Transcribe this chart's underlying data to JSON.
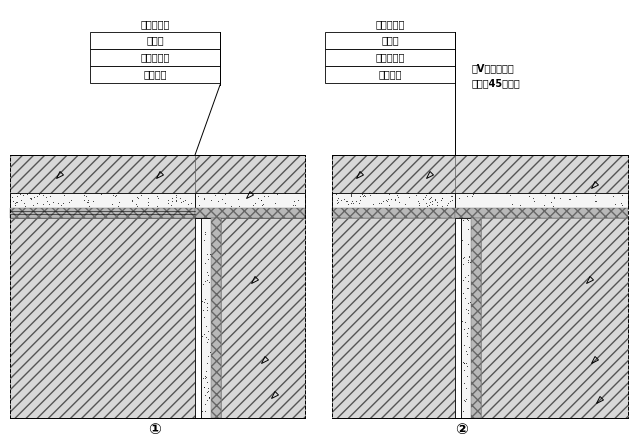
{
  "bg_color": "#ffffff",
  "title1": "建筑结构层",
  "labels1": [
    "找平层",
    "石材粘合剂",
    "石材墙面"
  ],
  "title2": "建筑结构层",
  "labels2": [
    "找平层",
    "石材粘合剂",
    "石材墙面"
  ],
  "note_line1": "留V字槽、凹槽",
  "note_line2": "阴角处45度对角",
  "circle1": "①",
  "circle2": "②",
  "fig_width": 6.39,
  "fig_height": 4.42,
  "dpi": 100
}
